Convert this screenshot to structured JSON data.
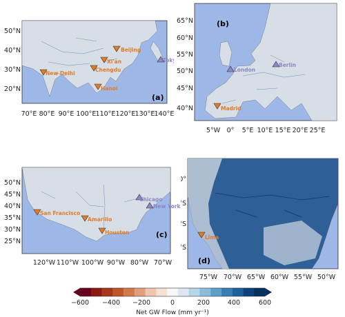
{
  "panels": [
    {
      "id": "a",
      "label": "(a)",
      "lat_ticks": [
        "50°N",
        "40°N",
        "30°N",
        "20°N"
      ],
      "lon_ticks": [
        "70°E",
        "80°E",
        "90°E",
        "100°E",
        "110°E",
        "120°E",
        "130°E",
        "140°E"
      ],
      "cities": [
        {
          "name": "Beijing",
          "type": "down"
        },
        {
          "name": "Xi'an",
          "type": "down"
        },
        {
          "name": "Chengdu",
          "type": "down"
        },
        {
          "name": "New Delhi",
          "type": "down"
        },
        {
          "name": "Hanoi",
          "type": "down"
        },
        {
          "name": "Tokyo",
          "type": "up"
        }
      ]
    },
    {
      "id": "b",
      "label": "(b)",
      "lat_ticks": [
        "65°N",
        "60°N",
        "55°N",
        "50°N",
        "45°N",
        "40°N"
      ],
      "lon_ticks": [
        "5°W",
        "0°",
        "5°E",
        "10°E",
        "15°E",
        "20°E",
        "25°E"
      ],
      "cities": [
        {
          "name": "London",
          "type": "up"
        },
        {
          "name": "Berlin",
          "type": "up"
        },
        {
          "name": "Madrid",
          "type": "down"
        }
      ]
    },
    {
      "id": "c",
      "label": "(c)",
      "lat_ticks": [
        "50°N",
        "45°N",
        "40°N",
        "35°N",
        "30°N",
        "25°N"
      ],
      "lon_ticks": [
        "120°W",
        "110°W",
        "100°W",
        "90°W",
        "80°W",
        "70°W"
      ],
      "cities": [
        {
          "name": "San Francisco",
          "type": "down"
        },
        {
          "name": "Amarillo",
          "type": "down"
        },
        {
          "name": "Houston",
          "type": "down"
        },
        {
          "name": "Chicago",
          "type": "up"
        },
        {
          "name": "New York",
          "type": "up"
        }
      ]
    },
    {
      "id": "d",
      "label": "(d)",
      "lat_ticks": [
        "0°",
        "5°S",
        "10°S",
        "15°S"
      ],
      "lon_ticks": [
        "75°W",
        "70°W",
        "65°W",
        "60°W",
        "55°W",
        "50°W"
      ],
      "cities": [
        {
          "name": "Lima",
          "type": "down"
        }
      ]
    }
  ],
  "colorbar": {
    "label": "Net GW Flow (mm yr⁻¹)",
    "ticks": [
      "−600",
      "−400",
      "−200",
      "0",
      "200",
      "400",
      "600"
    ],
    "colors": [
      "#67001f",
      "#8b1a12",
      "#a8361a",
      "#c0562c",
      "#d17a4e",
      "#e0a07c",
      "#edc7ab",
      "#f3e1d3",
      "#f7f7f7",
      "#dce8f1",
      "#b8d4e8",
      "#8fbcda",
      "#5f9ec7",
      "#3a7db3",
      "#1f5f9a",
      "#0d427c",
      "#053061"
    ]
  },
  "colors": {
    "ocean": "#9db8e6",
    "land": "#d8dee6",
    "discharge_marker": "#e07b26",
    "recharge_marker": "#8a86c8"
  }
}
